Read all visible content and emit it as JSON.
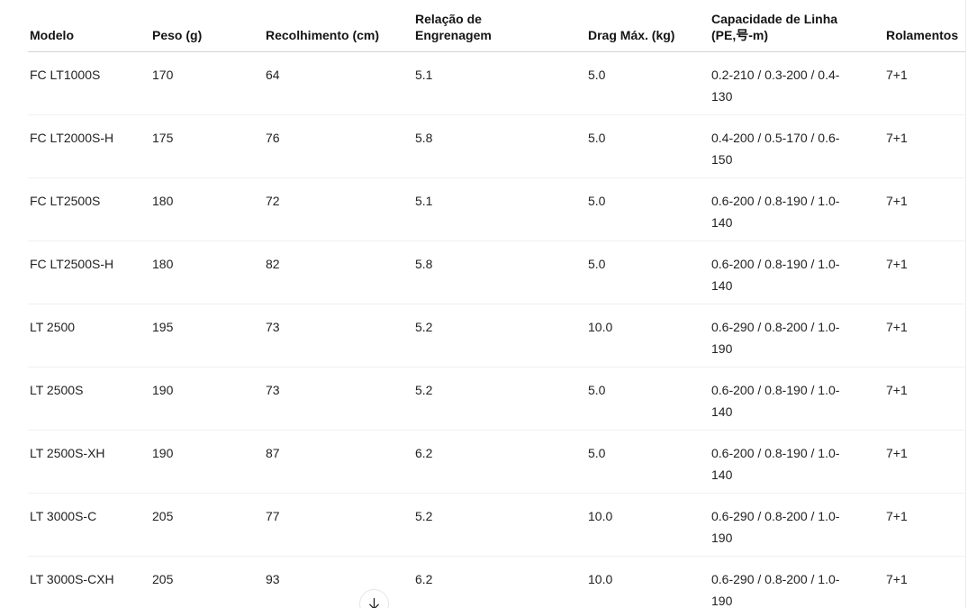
{
  "table": {
    "columns": [
      {
        "key": "modelo",
        "label": "Modelo"
      },
      {
        "key": "peso",
        "label": "Peso (g)"
      },
      {
        "key": "recolhimento",
        "label": "Recolhimento (cm)"
      },
      {
        "key": "relacao",
        "label": "Relação de\nEngrenagem"
      },
      {
        "key": "drag",
        "label": "Drag Máx. (kg)"
      },
      {
        "key": "capacidade",
        "label": "Capacidade de Linha\n(PE,号-m)"
      },
      {
        "key": "rolamentos",
        "label": "Rolamentos"
      }
    ],
    "rows": [
      [
        "FC LT1000S",
        "170",
        "64",
        "5.1",
        "5.0",
        "0.2-210 / 0.3-200 / 0.4-130",
        "7+1"
      ],
      [
        "FC LT2000S-H",
        "175",
        "76",
        "5.8",
        "5.0",
        "0.4-200 / 0.5-170 / 0.6-150",
        "7+1"
      ],
      [
        "FC LT2500S",
        "180",
        "72",
        "5.1",
        "5.0",
        "0.6-200 / 0.8-190 / 1.0-140",
        "7+1"
      ],
      [
        "FC LT2500S-H",
        "180",
        "82",
        "5.8",
        "5.0",
        "0.6-200 / 0.8-190 / 1.0-140",
        "7+1"
      ],
      [
        "LT 2500",
        "195",
        "73",
        "5.2",
        "10.0",
        "0.6-290 / 0.8-200 / 1.0-190",
        "7+1"
      ],
      [
        "LT 2500S",
        "190",
        "73",
        "5.2",
        "5.0",
        "0.6-200 / 0.8-190 / 1.0-140",
        "7+1"
      ],
      [
        "LT 2500S-XH",
        "190",
        "87",
        "6.2",
        "5.0",
        "0.6-200 / 0.8-190 / 1.0-140",
        "7+1"
      ],
      [
        "LT 3000S-C",
        "205",
        "77",
        "5.2",
        "10.0",
        "0.6-290 / 0.8-200 / 1.0-190",
        "7+1"
      ],
      [
        "LT 3000S-CXH",
        "205",
        "93",
        "6.2",
        "10.0",
        "0.6-290 / 0.8-200 / 1.0-190",
        "7+1"
      ]
    ]
  },
  "expand_button": {
    "icon": "arrow-down"
  },
  "colors": {
    "text": "#1a1a1a",
    "header_divider": "#d2d2d2",
    "row_divider": "#f1f1f1",
    "button_border": "#e6e6e6",
    "background": "#ffffff"
  }
}
